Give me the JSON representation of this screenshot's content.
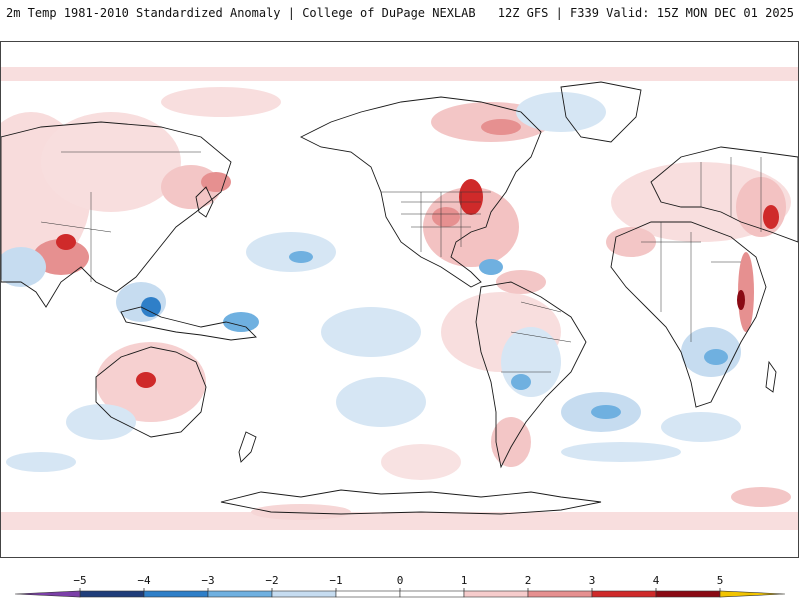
{
  "header": {
    "title_left": "2m Temp 1981-2010 Standardized Anomaly | College of DuPage NEXLAB",
    "title_right": "12Z GFS | F339 Valid: 15Z MON DEC 01 2025"
  },
  "colorbar": {
    "ticks": [
      {
        "value": -5,
        "label": "−5"
      },
      {
        "value": -4,
        "label": "−4"
      },
      {
        "value": -3,
        "label": "−3"
      },
      {
        "value": -2,
        "label": "−2"
      },
      {
        "value": -1,
        "label": "−1"
      },
      {
        "value": 0,
        "label": "0"
      },
      {
        "value": 1,
        "label": "1"
      },
      {
        "value": 2,
        "label": "2"
      },
      {
        "value": 3,
        "label": "3"
      },
      {
        "value": 4,
        "label": "4"
      },
      {
        "value": 5,
        "label": "5"
      }
    ],
    "bins": [
      {
        "from": -5,
        "to": -4,
        "color": "#1f3d7a"
      },
      {
        "from": -4,
        "to": -3,
        "color": "#2f7fc8"
      },
      {
        "from": -3,
        "to": -2,
        "color": "#6fb0e0"
      },
      {
        "from": -2,
        "to": -1,
        "color": "#c6dcf0"
      },
      {
        "from": -1,
        "to": 0,
        "color": "#ffffff"
      },
      {
        "from": 0,
        "to": 1,
        "color": "#ffffff"
      },
      {
        "from": 1,
        "to": 2,
        "color": "#f6cccc"
      },
      {
        "from": 2,
        "to": 3,
        "color": "#e69090"
      },
      {
        "from": 3,
        "to": 4,
        "color": "#cf2a2a"
      },
      {
        "from": 4,
        "to": 5,
        "color": "#8a0a14"
      }
    ],
    "low_extension_color": "#7b3fa8",
    "high_extension_color": "#f2c400"
  },
  "map": {
    "background_color": "#ffffff",
    "coastline_color": "#1a1a1a",
    "border_color": "#333333"
  }
}
